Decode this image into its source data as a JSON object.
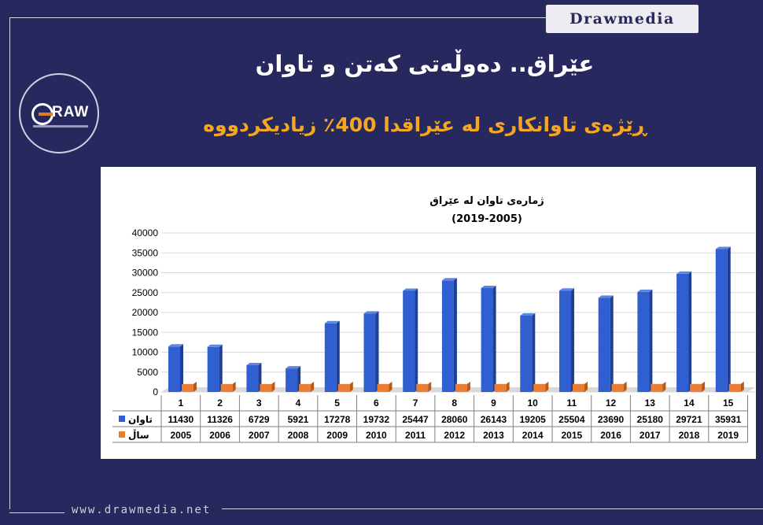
{
  "brand": "Drawmedia",
  "logo_text": "RAW",
  "title": "عێراق.. دەوڵەتی کەتن و تاوان",
  "subtitle": "ڕێژەی تاوانکاری لە عێراقدا 400٪ زیادیکردووە",
  "footer_url": "www.drawmedia.net",
  "colors": {
    "background": "#27285e",
    "accent": "#f5a623",
    "bar_primary": "#2f5fd0",
    "bar_secondary": "#ed7d31"
  },
  "chart_data": {
    "type": "bar",
    "title_line1": "ژمارەی تاوان لە عێراق",
    "title_line2": "(2019-2005)",
    "categories": [
      "1",
      "2",
      "3",
      "4",
      "5",
      "6",
      "7",
      "8",
      "9",
      "10",
      "11",
      "12",
      "13",
      "14",
      "15"
    ],
    "series": [
      {
        "name": "تاوان",
        "values": [
          11430,
          11326,
          6729,
          5921,
          17278,
          19732,
          25447,
          28060,
          26143,
          19205,
          25504,
          23690,
          25180,
          29721,
          35931
        ]
      },
      {
        "name": "ساڵ",
        "values": [
          2005,
          2006,
          2007,
          2008,
          2009,
          2010,
          2011,
          2012,
          2013,
          2014,
          2015,
          2016,
          2017,
          2018,
          2019
        ]
      }
    ],
    "yticks": [
      0,
      5000,
      10000,
      15000,
      20000,
      25000,
      30000,
      35000,
      40000
    ],
    "ylim": [
      0,
      40000
    ],
    "grid": true,
    "legend": "data-table-below"
  }
}
